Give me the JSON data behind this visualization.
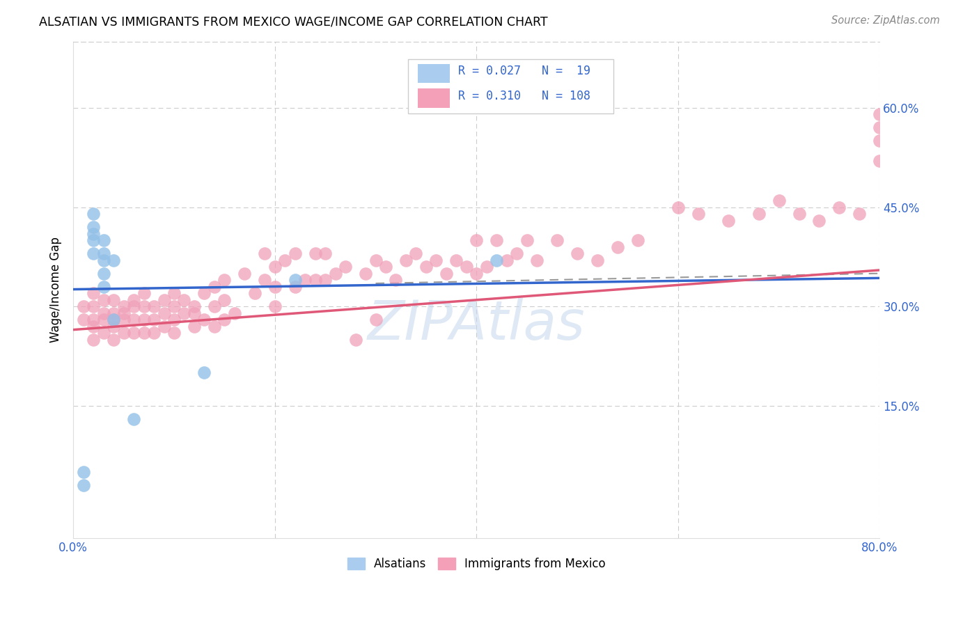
{
  "title": "ALSATIAN VS IMMIGRANTS FROM MEXICO WAGE/INCOME GAP CORRELATION CHART",
  "source": "Source: ZipAtlas.com",
  "ylabel": "Wage/Income Gap",
  "xlim": [
    0.0,
    0.8
  ],
  "ylim": [
    -0.05,
    0.7
  ],
  "yticks": [
    0.0,
    0.15,
    0.3,
    0.45,
    0.6
  ],
  "xticks": [
    0.0,
    0.2,
    0.4,
    0.6,
    0.8
  ],
  "watermark": "ZIPAtlas",
  "blue_scatter_color": "#92C0E8",
  "pink_scatter_color": "#F0A0B8",
  "blue_line_color": "#3366CC",
  "pink_line_color": "#E05878",
  "dashed_line_color": "#999999",
  "alsatian_x": [
    0.01,
    0.01,
    0.02,
    0.02,
    0.02,
    0.02,
    0.02,
    0.03,
    0.03,
    0.03,
    0.03,
    0.03,
    0.04,
    0.04,
    0.06,
    0.13,
    0.22,
    0.42
  ],
  "alsatian_y": [
    0.05,
    0.03,
    0.44,
    0.42,
    0.41,
    0.4,
    0.38,
    0.37,
    0.35,
    0.33,
    0.4,
    0.38,
    0.37,
    0.28,
    0.13,
    0.2,
    0.34,
    0.37
  ],
  "mexico_x": [
    0.01,
    0.01,
    0.02,
    0.02,
    0.02,
    0.02,
    0.02,
    0.03,
    0.03,
    0.03,
    0.03,
    0.04,
    0.04,
    0.04,
    0.04,
    0.04,
    0.05,
    0.05,
    0.05,
    0.05,
    0.06,
    0.06,
    0.06,
    0.06,
    0.07,
    0.07,
    0.07,
    0.07,
    0.08,
    0.08,
    0.08,
    0.09,
    0.09,
    0.09,
    0.1,
    0.1,
    0.1,
    0.1,
    0.11,
    0.11,
    0.12,
    0.12,
    0.12,
    0.13,
    0.13,
    0.14,
    0.14,
    0.14,
    0.15,
    0.15,
    0.15,
    0.16,
    0.17,
    0.18,
    0.19,
    0.19,
    0.2,
    0.2,
    0.2,
    0.21,
    0.22,
    0.22,
    0.23,
    0.24,
    0.24,
    0.25,
    0.25,
    0.26,
    0.27,
    0.28,
    0.29,
    0.3,
    0.3,
    0.31,
    0.32,
    0.33,
    0.34,
    0.35,
    0.36,
    0.37,
    0.38,
    0.39,
    0.4,
    0.4,
    0.41,
    0.42,
    0.43,
    0.44,
    0.45,
    0.46,
    0.48,
    0.5,
    0.52,
    0.54,
    0.56,
    0.6,
    0.62,
    0.65,
    0.68,
    0.7,
    0.72,
    0.74,
    0.76,
    0.78,
    0.8,
    0.8,
    0.8,
    0.8
  ],
  "mexico_y": [
    0.3,
    0.28,
    0.32,
    0.3,
    0.28,
    0.27,
    0.25,
    0.31,
    0.29,
    0.28,
    0.26,
    0.31,
    0.29,
    0.28,
    0.27,
    0.25,
    0.3,
    0.29,
    0.28,
    0.26,
    0.31,
    0.3,
    0.28,
    0.26,
    0.32,
    0.3,
    0.28,
    0.26,
    0.3,
    0.28,
    0.26,
    0.31,
    0.29,
    0.27,
    0.32,
    0.3,
    0.28,
    0.26,
    0.31,
    0.29,
    0.3,
    0.29,
    0.27,
    0.32,
    0.28,
    0.33,
    0.3,
    0.27,
    0.34,
    0.31,
    0.28,
    0.29,
    0.35,
    0.32,
    0.38,
    0.34,
    0.36,
    0.33,
    0.3,
    0.37,
    0.38,
    0.33,
    0.34,
    0.38,
    0.34,
    0.38,
    0.34,
    0.35,
    0.36,
    0.25,
    0.35,
    0.37,
    0.28,
    0.36,
    0.34,
    0.37,
    0.38,
    0.36,
    0.37,
    0.35,
    0.37,
    0.36,
    0.4,
    0.35,
    0.36,
    0.4,
    0.37,
    0.38,
    0.4,
    0.37,
    0.4,
    0.38,
    0.37,
    0.39,
    0.4,
    0.45,
    0.44,
    0.43,
    0.44,
    0.46,
    0.44,
    0.43,
    0.45,
    0.44,
    0.57,
    0.59,
    0.55,
    0.52
  ],
  "blue_line_x0": 0.0,
  "blue_line_y0": 0.326,
  "blue_line_x1": 0.8,
  "blue_line_y1": 0.343,
  "pink_line_x0": 0.0,
  "pink_line_y0": 0.265,
  "pink_line_x1": 0.8,
  "pink_line_y1": 0.355,
  "dash_line_x0": 0.3,
  "dash_line_y0": 0.335,
  "dash_line_x1": 0.8,
  "dash_line_y1": 0.35
}
